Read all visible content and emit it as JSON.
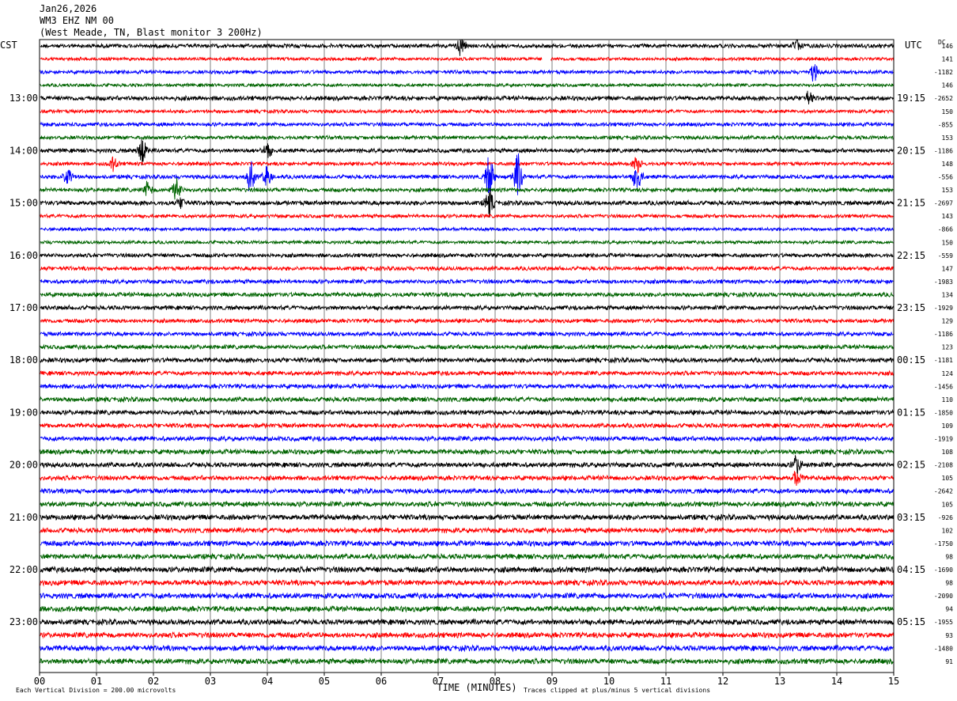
{
  "header": {
    "date": "Jan26,2026",
    "station": "WM3 EHZ NM 00",
    "description": "(West Meade, TN, Blast monitor 3 200Hz)"
  },
  "left_timezone": "CST",
  "right_timezone": "UTC",
  "dc_label": "DC",
  "footer": {
    "scale": "Each Vertical Division =  200.00 microvolts",
    "clip": "Traces clipped at plus/minus 5 vertical divisions"
  },
  "chart_data": {
    "type": "helicorder",
    "xlabel": "TIME (MINUTES)",
    "x_ticks": [
      "00",
      "01",
      "02",
      "03",
      "04",
      "05",
      "06",
      "07",
      "08",
      "09",
      "10",
      "11",
      "12",
      "13",
      "14",
      "15"
    ],
    "xlim": [
      0,
      15
    ],
    "trace_colors": [
      "#000000",
      "#ff0000",
      "#0000ff",
      "#006400"
    ],
    "traces_per_hour": 4,
    "left_hour_labels": [
      "13:00",
      "14:00",
      "15:00",
      "16:00",
      "17:00",
      "18:00",
      "19:00",
      "20:00",
      "21:00",
      "22:00",
      "23:00"
    ],
    "right_hour_labels": [
      "19:15",
      "20:15",
      "21:15",
      "22:15",
      "23:15",
      "00:15",
      "01:15",
      "02:15",
      "03:15",
      "04:15",
      "05:15"
    ],
    "dc_offsets": [
      "146",
      "141",
      "-1182",
      "146",
      "-2652",
      "150",
      "-855",
      "153",
      "-1186",
      "148",
      "-556",
      "153",
      "-2697",
      "143",
      "-866",
      "150",
      "-559",
      "147",
      "-1983",
      "134",
      "-1929",
      "129",
      "-1186",
      "123",
      "-1181",
      "124",
      "-1456",
      "110",
      "-1850",
      "109",
      "-1919",
      "108",
      "-2108",
      "105",
      "-2642",
      "105",
      "-926",
      "102",
      "-1750",
      "98",
      "-1690",
      "98",
      "-2090",
      "94",
      "-1955",
      "93",
      "-1480",
      "91"
    ],
    "amplitude": [
      2.2,
      1.8,
      2.0,
      1.8,
      2.5,
      1.9,
      2.1,
      2.1,
      2.3,
      2.0,
      2.2,
      2.3,
      2.5,
      2.0,
      1.8,
      1.8,
      2.2,
      2.2,
      2.3,
      2.4,
      2.4,
      2.2,
      2.3,
      2.4,
      2.6,
      2.4,
      2.5,
      2.6,
      2.6,
      2.5,
      2.6,
      2.7,
      2.7,
      2.6,
      2.7,
      2.8,
      3.0,
      2.8,
      3.0,
      2.9,
      3.2,
      3.0,
      3.1,
      3.0,
      3.0,
      3.0,
      3.0,
      3.0
    ],
    "events": [
      {
        "trace": 0,
        "minute": 7.4,
        "amp": 10
      },
      {
        "trace": 0,
        "minute": 13.3,
        "amp": 8
      },
      {
        "trace": 1,
        "minute": 8.9,
        "amp": 0,
        "gap": 0.15
      },
      {
        "trace": 2,
        "minute": 13.6,
        "amp": 9
      },
      {
        "trace": 4,
        "minute": 13.5,
        "amp": 7
      },
      {
        "trace": 8,
        "minute": 1.8,
        "amp": 16
      },
      {
        "trace": 8,
        "minute": 4.0,
        "amp": 8
      },
      {
        "trace": 9,
        "minute": 1.3,
        "amp": 7
      },
      {
        "trace": 9,
        "minute": 10.5,
        "amp": 9
      },
      {
        "trace": 10,
        "minute": 0.5,
        "amp": 14
      },
      {
        "trace": 10,
        "minute": 3.7,
        "amp": 18
      },
      {
        "trace": 10,
        "minute": 4.0,
        "amp": 12
      },
      {
        "trace": 10,
        "minute": 7.9,
        "amp": 22
      },
      {
        "trace": 10,
        "minute": 8.4,
        "amp": 24
      },
      {
        "trace": 10,
        "minute": 10.5,
        "amp": 16
      },
      {
        "trace": 11,
        "minute": 2.4,
        "amp": 14
      },
      {
        "trace": 11,
        "minute": 1.9,
        "amp": 8
      },
      {
        "trace": 12,
        "minute": 2.5,
        "amp": 6
      },
      {
        "trace": 12,
        "minute": 7.9,
        "amp": 14
      },
      {
        "trace": 32,
        "minute": 13.3,
        "amp": 10
      },
      {
        "trace": 33,
        "minute": 13.3,
        "amp": 8
      }
    ]
  }
}
